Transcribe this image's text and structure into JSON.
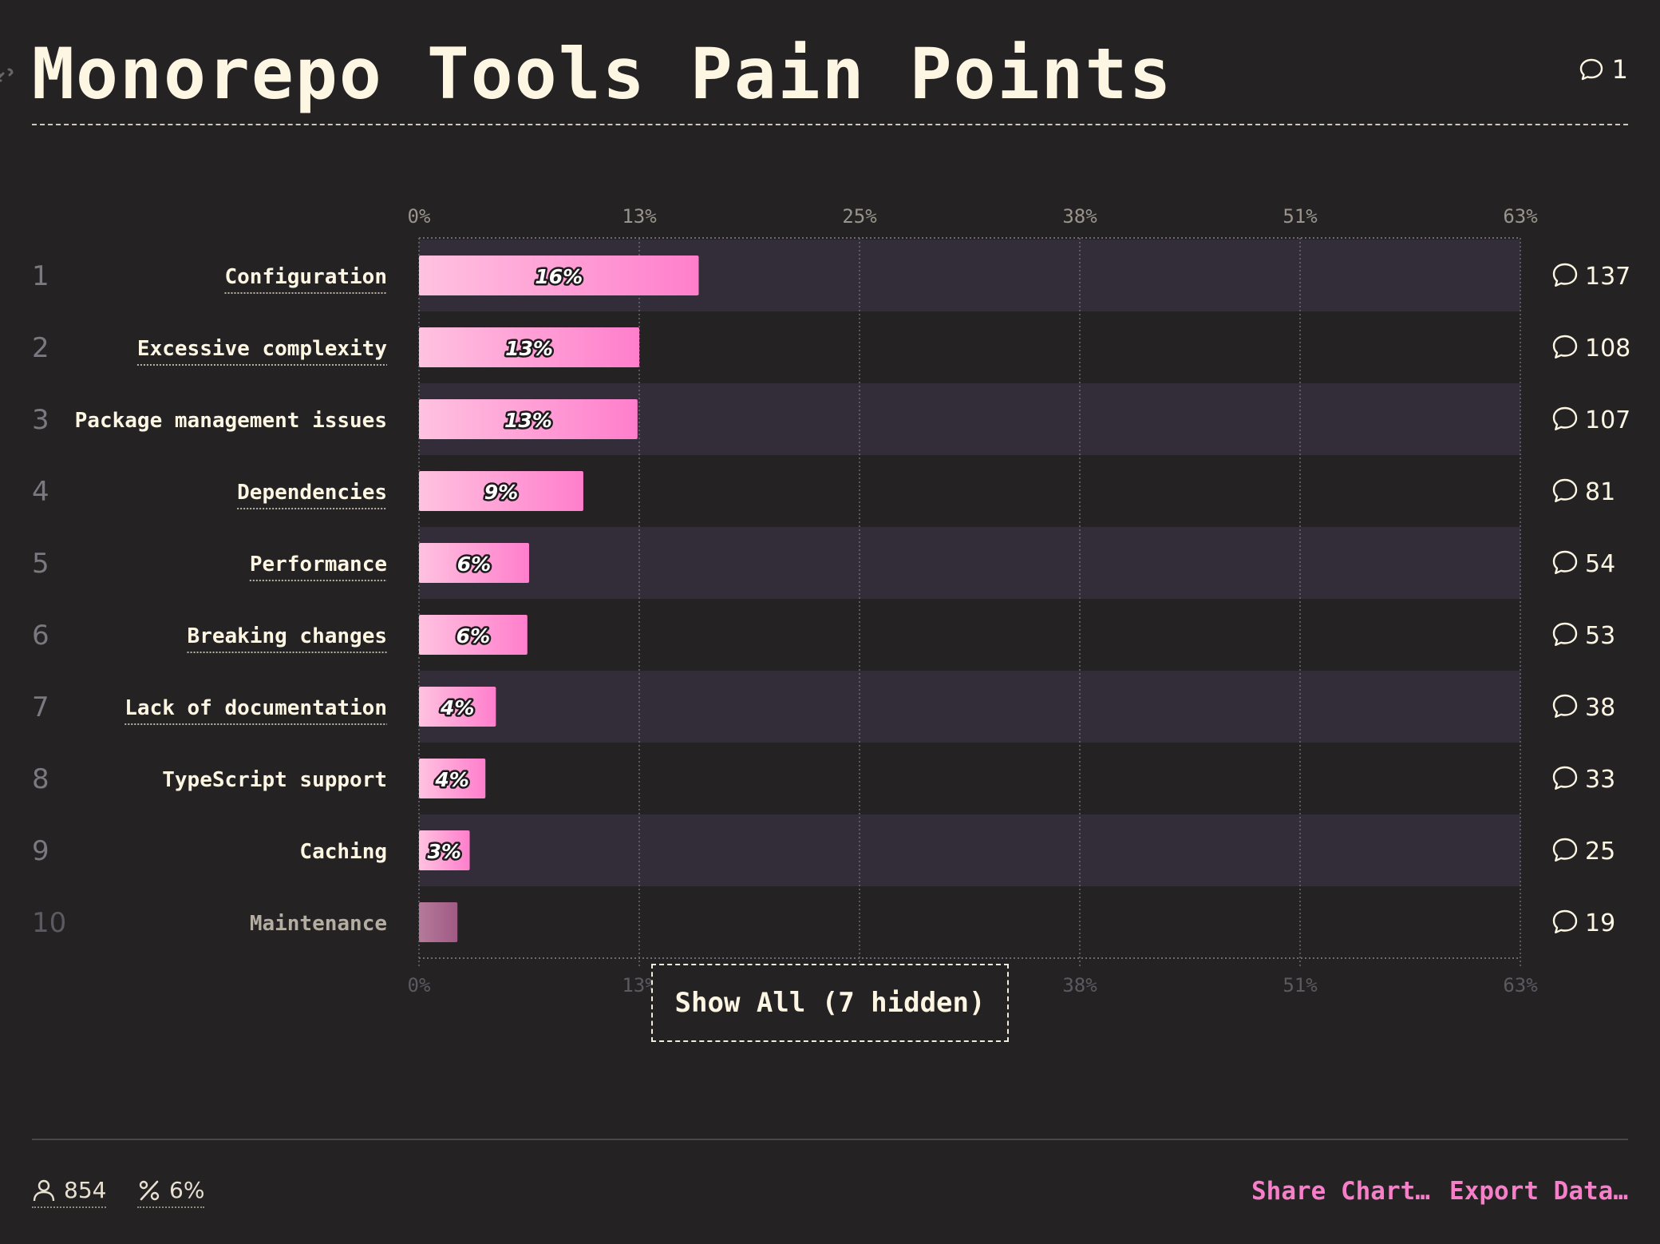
{
  "header": {
    "title": "Monorepo Tools Pain Points",
    "comment_count": "1"
  },
  "chart_data": {
    "type": "bar",
    "orientation": "horizontal",
    "title": "Monorepo Tools Pain Points",
    "xlim": [
      0,
      63
    ],
    "x_ticks": [
      "0%",
      "13%",
      "25%",
      "38%",
      "51%",
      "63%"
    ],
    "x_tick_values": [
      0,
      12.6,
      25.2,
      37.8,
      50.4,
      63
    ],
    "grid": true,
    "bar_color_start": "#ffc2e0",
    "bar_color_end": "#ff7ecc",
    "rows": [
      {
        "rank": "1",
        "label": "Configuration",
        "value": 16,
        "value_label": "16%",
        "comments": "137",
        "underlined": true
      },
      {
        "rank": "2",
        "label": "Excessive complexity",
        "value": 12.6,
        "value_label": "13%",
        "comments": "108",
        "underlined": true
      },
      {
        "rank": "3",
        "label": "Package management issues",
        "value": 12.5,
        "value_label": "13%",
        "comments": "107",
        "underlined": false
      },
      {
        "rank": "4",
        "label": "Dependencies",
        "value": 9.4,
        "value_label": "9%",
        "comments": "81",
        "underlined": true
      },
      {
        "rank": "5",
        "label": "Performance",
        "value": 6.3,
        "value_label": "6%",
        "comments": "54",
        "underlined": true
      },
      {
        "rank": "6",
        "label": "Breaking changes",
        "value": 6.2,
        "value_label": "6%",
        "comments": "53",
        "underlined": true
      },
      {
        "rank": "7",
        "label": "Lack of documentation",
        "value": 4.4,
        "value_label": "4%",
        "comments": "38",
        "underlined": true
      },
      {
        "rank": "8",
        "label": "TypeScript support",
        "value": 3.8,
        "value_label": "4%",
        "comments": "33",
        "underlined": false
      },
      {
        "rank": "9",
        "label": "Caching",
        "value": 2.9,
        "value_label": "3%",
        "comments": "25",
        "underlined": false
      },
      {
        "rank": "10",
        "label": "Maintenance",
        "value": 2.2,
        "value_label": "",
        "comments": "19",
        "underlined": false,
        "muted": true
      }
    ]
  },
  "show_all_label": "Show All (7 hidden)",
  "footer": {
    "respondents": "854",
    "percentage": "6%",
    "share_label": "Share Chart…",
    "export_label": "Export Data…"
  }
}
